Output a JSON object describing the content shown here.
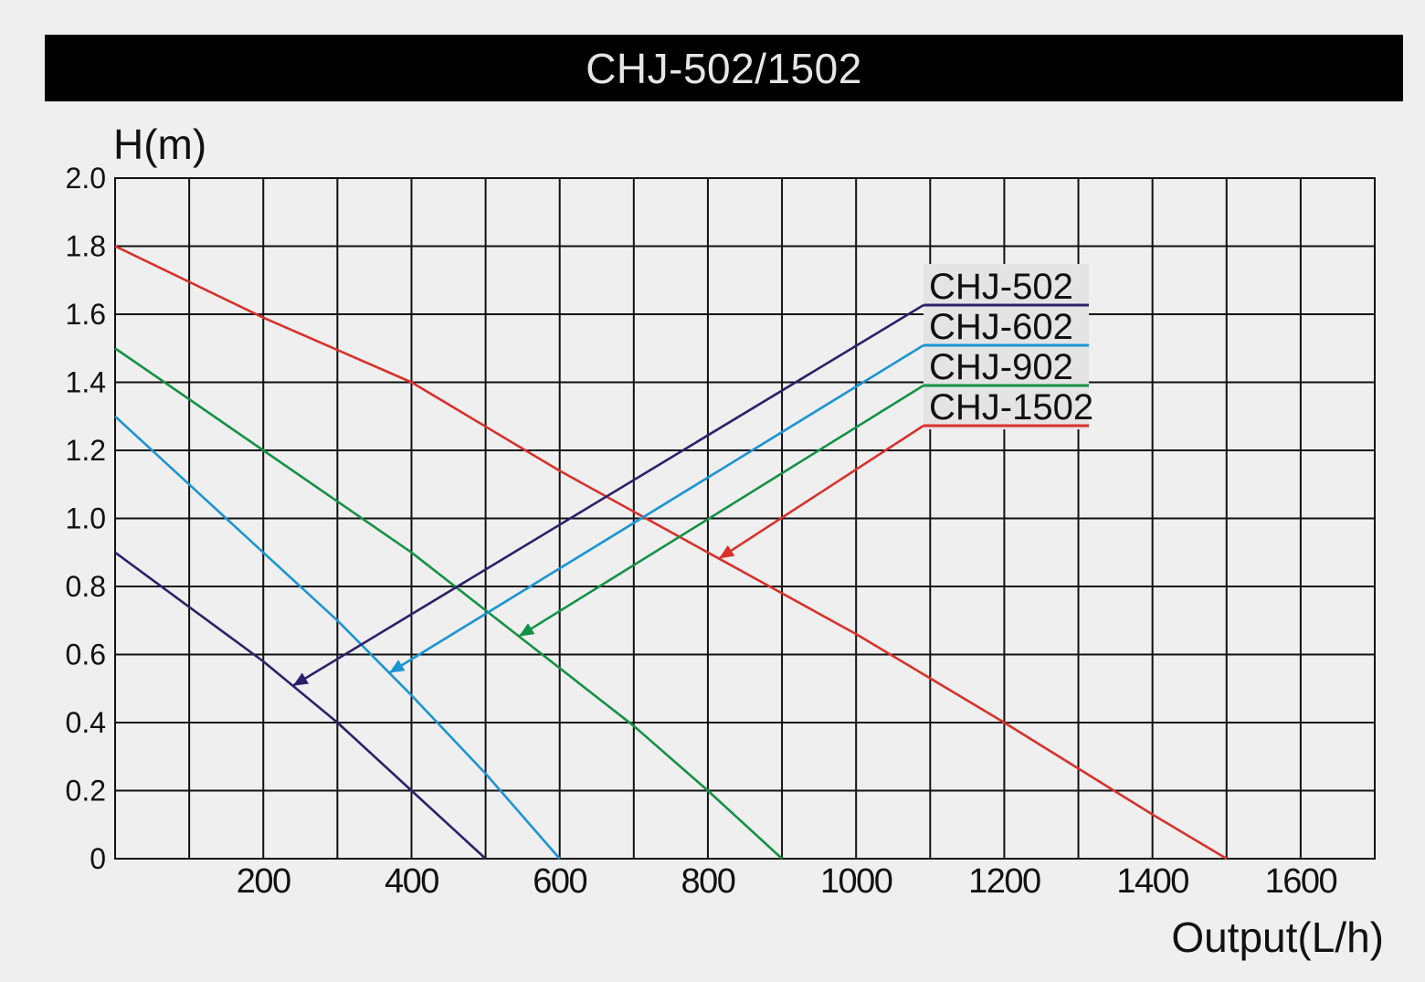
{
  "title": "CHJ-502/1502",
  "chart_data": {
    "type": "line",
    "title": "CHJ-502/1502",
    "xlabel": "Output(L/h)",
    "ylabel": "H(m)",
    "xlim": [
      0,
      1700
    ],
    "ylim": [
      0,
      2.0
    ],
    "x_ticks": [
      {
        "value": 200,
        "label": "200"
      },
      {
        "value": 400,
        "label": "400"
      },
      {
        "value": 600,
        "label": "600"
      },
      {
        "value": 800,
        "label": "800"
      },
      {
        "value": 1000,
        "label": "1000"
      },
      {
        "value": 1200,
        "label": "1200"
      },
      {
        "value": 1400,
        "label": "1400"
      },
      {
        "value": 1600,
        "label": "1600"
      }
    ],
    "y_ticks": [
      {
        "value": 0,
        "label": "0"
      },
      {
        "value": 0.2,
        "label": "0.2"
      },
      {
        "value": 0.4,
        "label": "0.4"
      },
      {
        "value": 0.6,
        "label": "0.6"
      },
      {
        "value": 0.8,
        "label": "0.8"
      },
      {
        "value": 1.0,
        "label": "1.0"
      },
      {
        "value": 1.2,
        "label": "1.2"
      },
      {
        "value": 1.4,
        "label": "1.4"
      },
      {
        "value": 1.6,
        "label": "1.6"
      },
      {
        "value": 1.8,
        "label": "1.8"
      },
      {
        "value": 2.0,
        "label": "2.0"
      }
    ],
    "grid": true,
    "legend_position": "top-right",
    "series": [
      {
        "name": "CHJ-502",
        "color": "#2b2169",
        "x": [
          0,
          100,
          200,
          300,
          400,
          500
        ],
        "y": [
          0.9,
          0.74,
          0.58,
          0.4,
          0.2,
          0
        ]
      },
      {
        "name": "CHJ-602",
        "color": "#1b94d2",
        "x": [
          0,
          100,
          200,
          300,
          400,
          500,
          600
        ],
        "y": [
          1.3,
          1.1,
          0.9,
          0.7,
          0.48,
          0.25,
          0
        ]
      },
      {
        "name": "CHJ-902",
        "color": "#139146",
        "x": [
          0,
          100,
          200,
          300,
          400,
          500,
          600,
          700,
          800,
          900
        ],
        "y": [
          1.5,
          1.35,
          1.2,
          1.05,
          0.9,
          0.73,
          0.56,
          0.39,
          0.2,
          0
        ]
      },
      {
        "name": "CHJ-1502",
        "color": "#d8312c",
        "x": [
          0,
          200,
          400,
          600,
          800,
          1000,
          1200,
          1400,
          1500
        ],
        "y": [
          1.8,
          1.59,
          1.4,
          1.14,
          0.9,
          0.66,
          0.4,
          0.13,
          0
        ]
      }
    ]
  }
}
